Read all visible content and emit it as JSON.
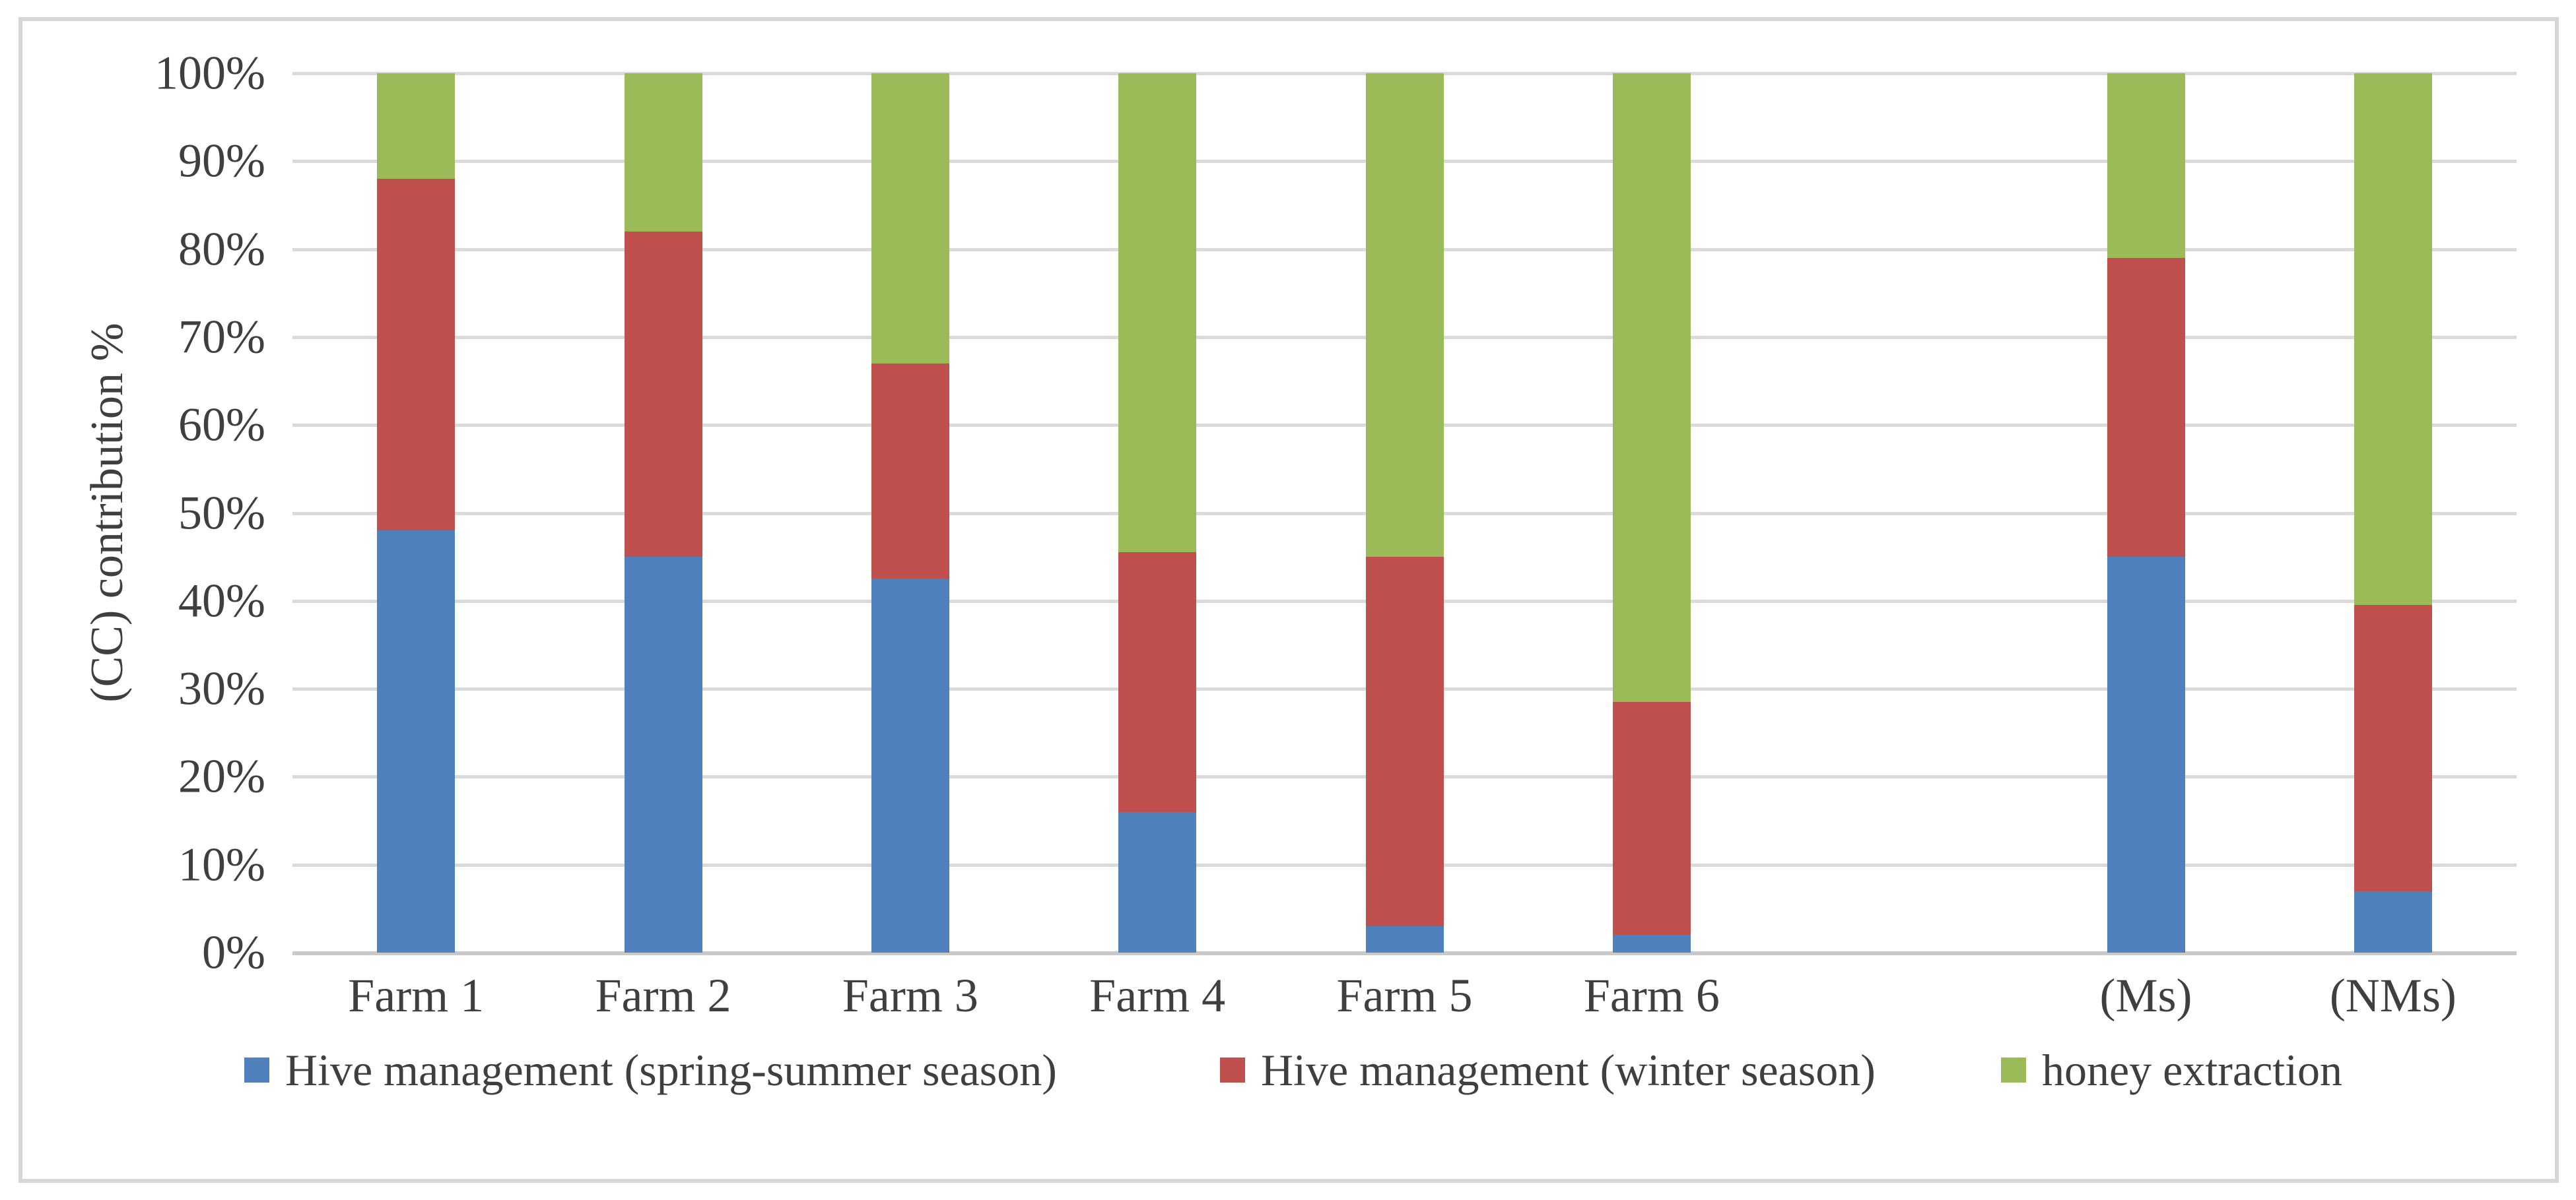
{
  "y_axis": {
    "title": "(CC) contribution %",
    "tick_labels": [
      "100%",
      "90%",
      "80%",
      "70%",
      "60%",
      "50%",
      "40%",
      "30%",
      "20%",
      "10%",
      "0%"
    ]
  },
  "chart_data": {
    "type": "bar",
    "subtype": "stacked-100-percent",
    "categories": [
      "Farm 1",
      "Farm 2",
      "Farm 3",
      "Farm 4",
      "Farm 5",
      "Farm 6",
      "",
      "(Ms)",
      "(NMs)"
    ],
    "series": [
      {
        "name": "Hive management (spring-summer season)",
        "color": "#4F81BD",
        "values": [
          48,
          45,
          42.5,
          16,
          3,
          2,
          null,
          45,
          7
        ]
      },
      {
        "name": "Hive management (winter season)",
        "color": "#C0504D",
        "values": [
          40,
          37,
          24.5,
          29.5,
          42,
          26.5,
          null,
          34,
          32.5
        ]
      },
      {
        "name": "honey extraction",
        "color": "#9BBB59",
        "values": [
          12,
          18,
          33,
          54.5,
          55,
          71.5,
          null,
          21,
          60.5
        ]
      }
    ],
    "title": "",
    "xlabel": "",
    "ylabel": "(CC) contribution %",
    "ylim": [
      0,
      100
    ],
    "y_tick_step": 10,
    "grid": true,
    "legend_position": "bottom",
    "colors": {
      "gridline": "#DADADA",
      "axis_line": "#C9C9C9",
      "text": "#3F3F3F",
      "frame_border": "#D6D6D6"
    }
  }
}
